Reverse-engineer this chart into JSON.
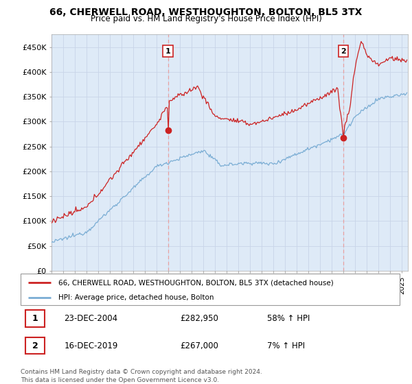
{
  "title": "66, CHERWELL ROAD, WESTHOUGHTON, BOLTON, BL5 3TX",
  "subtitle": "Price paid vs. HM Land Registry's House Price Index (HPI)",
  "ylabel_ticks": [
    "£0",
    "£50K",
    "£100K",
    "£150K",
    "£200K",
    "£250K",
    "£300K",
    "£350K",
    "£400K",
    "£450K"
  ],
  "ytick_vals": [
    0,
    50000,
    100000,
    150000,
    200000,
    250000,
    300000,
    350000,
    400000,
    450000
  ],
  "ylim": [
    0,
    475000
  ],
  "xlim_start": 1995.0,
  "xlim_end": 2025.5,
  "sale1_x": 2004.97,
  "sale1_y": 282950,
  "sale2_x": 2019.96,
  "sale2_y": 267000,
  "red_color": "#cc2222",
  "blue_color": "#7aadd4",
  "vline_color": "#e8a0a0",
  "bg_color": "#deeaf7",
  "grid_color": "#c8d4e8",
  "legend_entry1": "66, CHERWELL ROAD, WESTHOUGHTON, BOLTON, BL5 3TX (detached house)",
  "legend_entry2": "HPI: Average price, detached house, Bolton",
  "annotation1_date": "23-DEC-2004",
  "annotation1_price": "£282,950",
  "annotation1_hpi": "58% ↑ HPI",
  "annotation2_date": "16-DEC-2019",
  "annotation2_price": "£267,000",
  "annotation2_hpi": "7% ↑ HPI",
  "footer": "Contains HM Land Registry data © Crown copyright and database right 2024.\nThis data is licensed under the Open Government Licence v3.0."
}
